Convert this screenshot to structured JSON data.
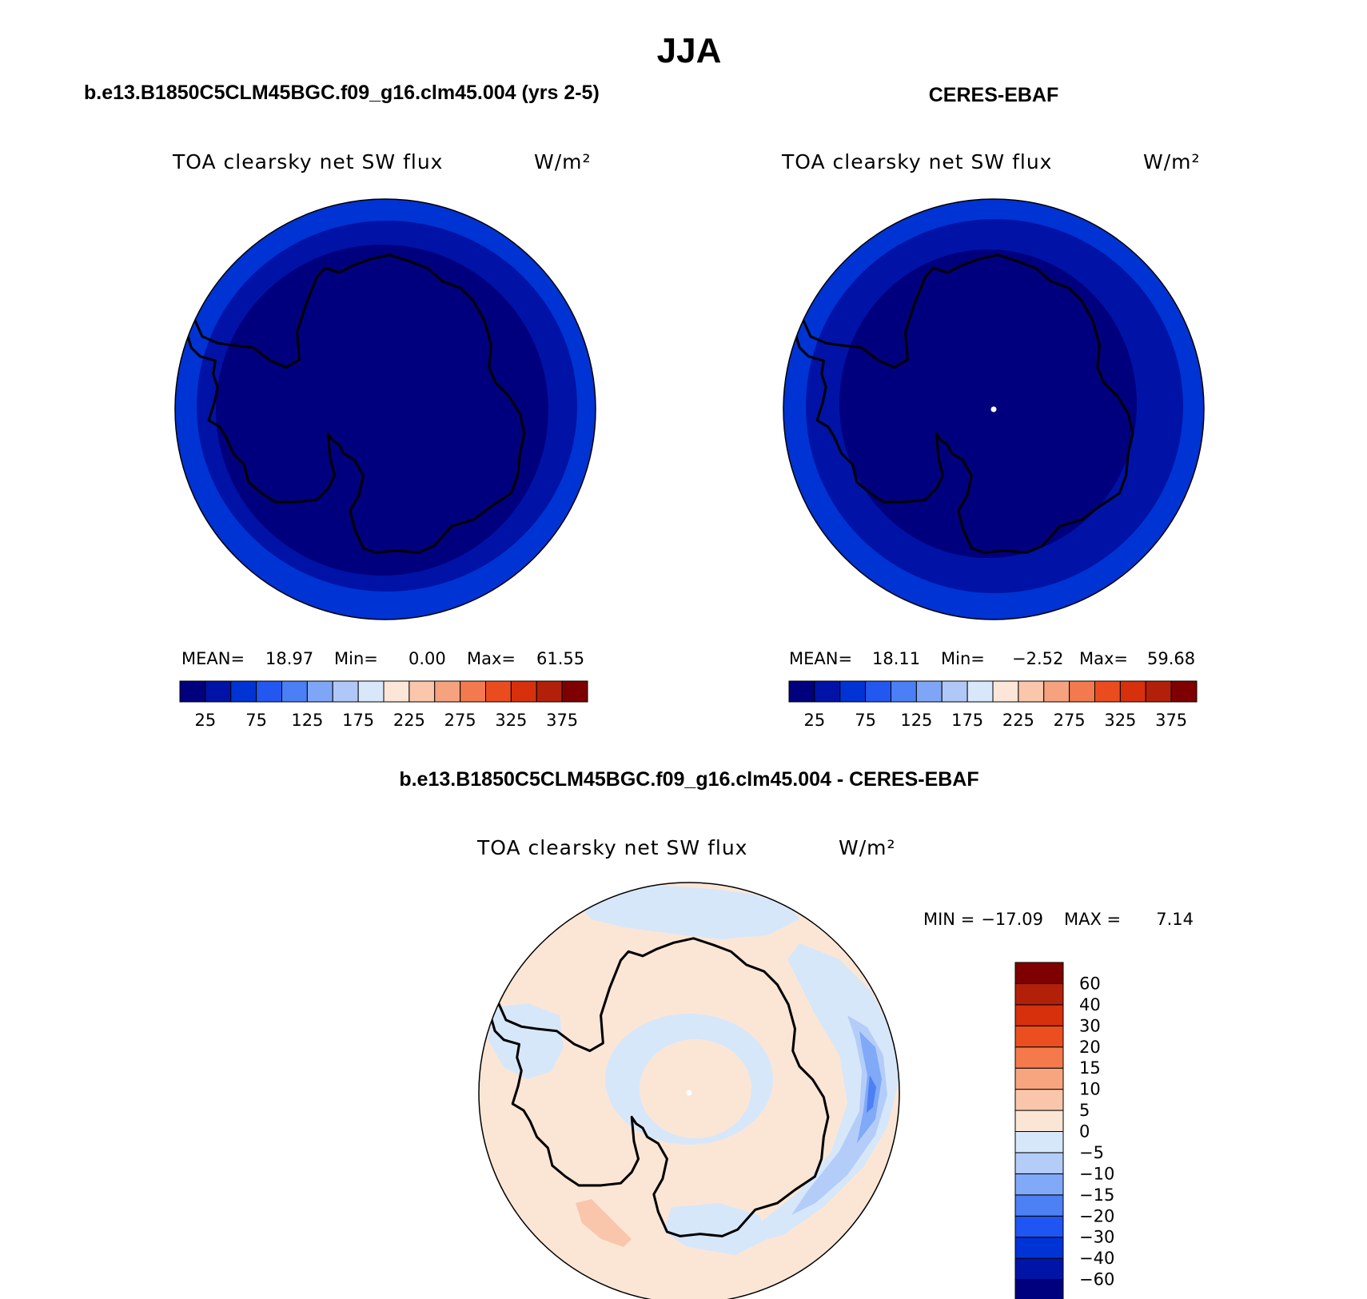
{
  "main_title": "JJA",
  "panels": [
    {
      "title": "b.e13.B1850C5CLM45BGC.f09_g16.clm45.004 (yrs 2-5)",
      "variable": "TOA clearsky net SW flux",
      "units": "W/m²",
      "stats": {
        "mean_label": "MEAN=",
        "mean": "18.97",
        "min_label": "Min=",
        "min": "0.00",
        "max_label": "Max=",
        "max": "61.55"
      }
    },
    {
      "title": "CERES-EBAF",
      "variable": "TOA clearsky net SW flux",
      "units": "W/m²",
      "stats": {
        "mean_label": "MEAN=",
        "mean": "18.11",
        "min_label": "Min=",
        "min": "−2.52",
        "max_label": "Max=",
        "max": "59.68"
      }
    },
    {
      "title": "b.e13.B1850C5CLM45BGC.f09_g16.clm45.004 - CERES-EBAF",
      "variable": "TOA clearsky net SW flux",
      "units": "W/m²",
      "stats": {
        "min_label": "MIN =",
        "min": "−17.09",
        "max_label": "MAX =",
        "max": "7.14"
      }
    }
  ],
  "colorbar_abs": {
    "colors": [
      "#00007f",
      "#0013a6",
      "#0033d3",
      "#2257f0",
      "#4a7ff5",
      "#7fa5f7",
      "#b0c8f8",
      "#d9e7fb",
      "#fce6d8",
      "#fac6ac",
      "#f6a27f",
      "#f27a4e",
      "#ea4c20",
      "#d7300d",
      "#b3200a",
      "#7f0000"
    ],
    "tick_labels": [
      "25",
      "75",
      "125",
      "175",
      "225",
      "275",
      "325",
      "375"
    ]
  },
  "colorbar_diff": {
    "colors": [
      "#00007f",
      "#0015a8",
      "#0033d6",
      "#1f55f2",
      "#4d7ff5",
      "#80a9f7",
      "#b4cdf8",
      "#d7e7fa",
      "#fbe6d6",
      "#f9c6ac",
      "#f7a57f",
      "#f47a4c",
      "#ec4f1f",
      "#d7300d",
      "#b3200a",
      "#7f0000"
    ],
    "tick_labels": [
      "60",
      "40",
      "30",
      "20",
      "15",
      "10",
      "5",
      "0",
      "−5",
      "−10",
      "−15",
      "−20",
      "−30",
      "−40",
      "−60"
    ]
  },
  "chart_data": [
    {
      "type": "heatmap",
      "projection": "south polar stereographic",
      "title": "b.e13.B1850C5CLM45BGC.f09_g16.clm45.004 (yrs 2-5)",
      "variable": "TOA clearsky net SW flux",
      "units": "W/m²",
      "mean": 18.97,
      "min": 0.0,
      "max": 61.55,
      "contour_levels": [
        0,
        25,
        50,
        75,
        100,
        125,
        150,
        175,
        200,
        225,
        250,
        275,
        300,
        325,
        350,
        375,
        400
      ],
      "field_bands": [
        {
          "range": "0-25",
          "color": "#00007f"
        },
        {
          "range": "25-50",
          "color": "#0013a6"
        },
        {
          "range": "50-75",
          "color": "#0033d3"
        }
      ]
    },
    {
      "type": "heatmap",
      "projection": "south polar stereographic",
      "title": "CERES-EBAF",
      "variable": "TOA clearsky net SW flux",
      "units": "W/m²",
      "mean": 18.11,
      "min": -2.52,
      "max": 59.68,
      "contour_levels": [
        0,
        25,
        50,
        75,
        100,
        125,
        150,
        175,
        200,
        225,
        250,
        275,
        300,
        325,
        350,
        375,
        400
      ],
      "field_bands": [
        {
          "range": "0-25",
          "color": "#00007f"
        },
        {
          "range": "25-50",
          "color": "#0013a6"
        },
        {
          "range": "50-75",
          "color": "#0033d3"
        }
      ]
    },
    {
      "type": "heatmap",
      "projection": "south polar stereographic",
      "title": "b.e13.B1850C5CLM45BGC.f09_g16.clm45.004 - CERES-EBAF",
      "variable": "TOA clearsky net SW flux",
      "units": "W/m²",
      "min": -17.09,
      "max": 7.14,
      "contour_levels": [
        -60,
        -40,
        -30,
        -20,
        -15,
        -10,
        -5,
        0,
        5,
        10,
        15,
        20,
        30,
        40,
        60
      ],
      "field_bands": [
        {
          "range": "0-5",
          "color": "#fbe6d6"
        },
        {
          "range": "-5-0",
          "color": "#d7e7fa"
        },
        {
          "range": "-10--5",
          "color": "#b4cdf8"
        },
        {
          "range": "-15--10",
          "color": "#80a9f7"
        },
        {
          "range": "-20--15",
          "color": "#4d7ff5"
        },
        {
          "range": "5-10",
          "color": "#f9c6ac"
        }
      ]
    }
  ]
}
